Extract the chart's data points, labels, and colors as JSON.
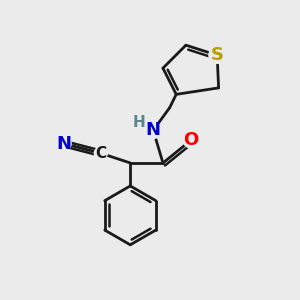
{
  "bg_color": "#ebebeb",
  "bond_color": "#1a1a1a",
  "bond_width": 2.0,
  "atom_colors": {
    "N": "#0000cc",
    "O": "#ff0000",
    "S": "#b8a000",
    "C": "#1a1a1a",
    "H": "#5a8888"
  },
  "font_size_atom": 13,
  "font_size_H": 11,
  "font_size_C": 11,
  "figsize": [
    3.0,
    3.0
  ],
  "dpi": 100
}
